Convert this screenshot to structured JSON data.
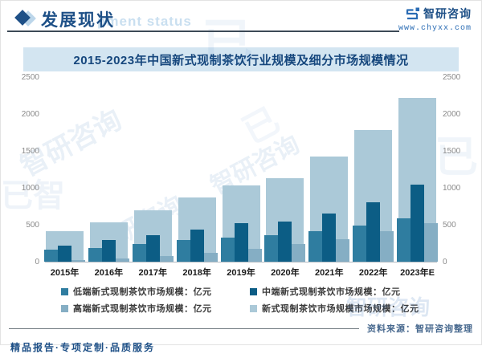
{
  "header": {
    "title": "发展现状",
    "ghost_text": "pment status",
    "brand_name": "智研咨询",
    "brand_url": "www.chyxx.com"
  },
  "chart_data": {
    "type": "bar",
    "title": "2015-2023年中国新式现制茶饮行业规模及细分市场规模情况",
    "categories": [
      "2015年",
      "2016年",
      "2017年",
      "2018年",
      "2019年",
      "2020年",
      "2021年",
      "2022年",
      "2023年E"
    ],
    "series": [
      {
        "name": "低端新式现制茶饮市场规模：亿元",
        "color": "#2f7da0",
        "style": "narrow",
        "values": [
          165,
          190,
          245,
          300,
          330,
          360,
          420,
          495,
          585
        ]
      },
      {
        "name": "中端新式现制茶饮市场规模：亿元",
        "color": "#0c5d85",
        "style": "narrow",
        "values": [
          220,
          300,
          365,
          440,
          520,
          545,
          650,
          805,
          1050
        ]
      },
      {
        "name": "高端新式现制茶饮市场规模：亿元",
        "color": "#85aec4",
        "style": "narrow",
        "values": [
          20,
          45,
          80,
          125,
          170,
          240,
          310,
          410,
          520
        ]
      },
      {
        "name": "新式现制茶饮市场规模市场规模：亿元",
        "color": "#abc9d8",
        "style": "background",
        "values": [
          410,
          530,
          700,
          870,
          1040,
          1136,
          1430,
          1790,
          2230
        ]
      }
    ],
    "ylim": [
      0,
      2500
    ],
    "y_ticks": [
      0,
      500,
      1000,
      1500,
      2000,
      2500
    ],
    "y_axis_sides": "both",
    "grid": false,
    "legend_position": "bottom"
  },
  "footer": {
    "source": "资料来源：智研咨询整理",
    "tagline": "精品报告·专项定制·品质服务"
  },
  "watermark": {
    "brand": "智研咨询",
    "glyph": "已"
  },
  "colors": {
    "accent_blue": "#1e5087",
    "title_band_bg": "#d3e5f1",
    "logo_blue": "#2a6cb4"
  }
}
